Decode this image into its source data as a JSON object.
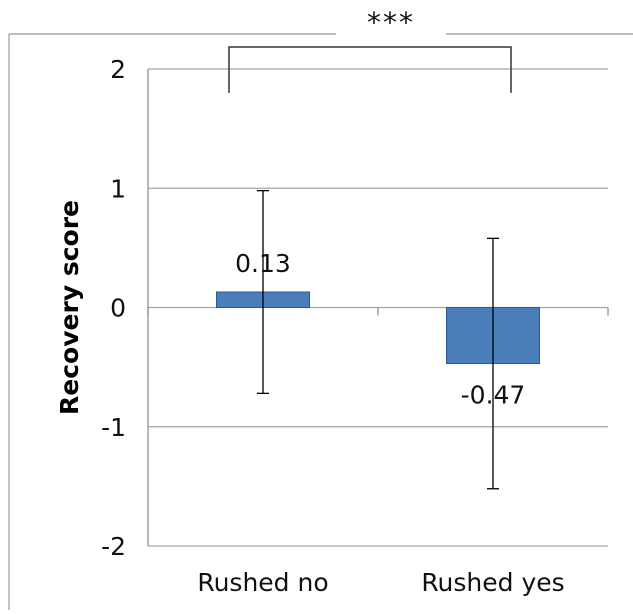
{
  "chart_data": {
    "type": "bar",
    "title": "",
    "xlabel": "",
    "ylabel": "Recovery score",
    "ylim": [
      -2,
      2
    ],
    "yticks": [
      -2,
      -1,
      0,
      1,
      2
    ],
    "ytick_labels": [
      "-2",
      "-1",
      "0",
      "1",
      "2"
    ],
    "grid": true,
    "legend": "none",
    "categories": [
      "Rushed no",
      "Rushed yes"
    ],
    "values": [
      0.13,
      -0.47
    ],
    "value_labels": [
      "0.13",
      "-0.47"
    ],
    "error_bars": [
      {
        "low": -0.72,
        "high": 0.98
      },
      {
        "low": -1.52,
        "high": 0.58
      }
    ],
    "significance": {
      "label": "***",
      "between": [
        "Rushed no",
        "Rushed yes"
      ]
    },
    "colors": {
      "bar_fill": "#4a7ebb",
      "bar_stroke": "#2a5a90",
      "grid": "#a6a6a6",
      "axis": "#888888",
      "error_bar": "#000000",
      "bracket": "#333333"
    }
  }
}
